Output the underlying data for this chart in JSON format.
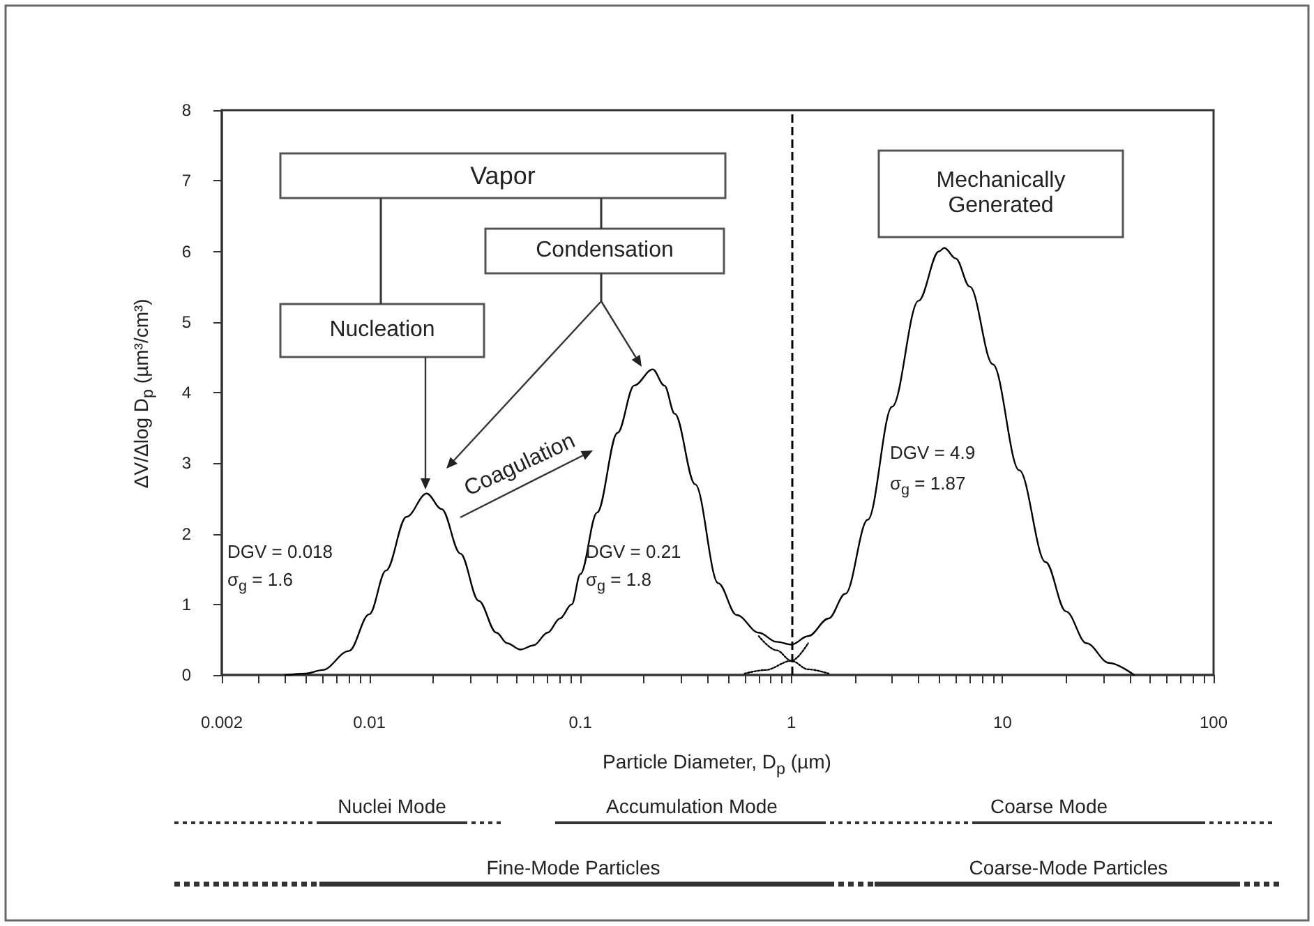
{
  "chart_data": {
    "type": "line",
    "xlabel": "Particle Diameter, D$_{p}$ (µm)",
    "ylabel": "ΔV/Δlog D$_{p}$ (µm³/cm³)",
    "annotations": [
      "Vapor",
      "Condensation",
      "Nucleation",
      "Mechanically Generated",
      "Coagulation",
      "DGV = 0.018",
      "σ$_{g}$ = 1.6",
      "DGV = 0.21",
      "σ$_{g}$ = 1.8",
      "DGV = 4.9",
      "σ$_{g}$ = 1.87",
      "Nuclei Mode",
      "Accumulation Mode",
      "Coarse Mode",
      "Fine-Mode Particles",
      "Coarse-Mode Particles"
    ],
    "series": [
      {
        "color": "#000000",
        "line_style": "solid",
        "x": [
          0.004,
          0.005,
          0.006,
          0.008,
          0.01,
          0.012,
          0.015,
          0.0187,
          0.022,
          0.027,
          0.033,
          0.04,
          0.045,
          0.052,
          0.06,
          0.07,
          0.08,
          0.091,
          0.1,
          0.12,
          0.15,
          0.18,
          0.22,
          0.25,
          0.28,
          0.35,
          0.45,
          0.55,
          0.7,
          0.85,
          1,
          1.2,
          1.5,
          1.8,
          2.3,
          3,
          4,
          5,
          5.3,
          6,
          7,
          9,
          12,
          16,
          20,
          25,
          32,
          42
        ],
        "values": [
          0,
          0.02,
          0.07,
          0.34,
          0.86,
          1.48,
          2.24,
          2.57,
          2.35,
          1.72,
          1.05,
          0.6,
          0.45,
          0.36,
          0.42,
          0.6,
          0.8,
          1,
          1.43,
          2.3,
          3.43,
          4.1,
          4.33,
          4.1,
          3.7,
          2.7,
          1.3,
          0.85,
          0.6,
          0.47,
          0.43,
          0.55,
          0.8,
          1.15,
          2.2,
          3.8,
          5.3,
          6,
          6.05,
          5.9,
          5.5,
          4.4,
          2.9,
          1.6,
          0.9,
          0.45,
          0.17,
          0
        ]
      },
      {
        "color": "#000000",
        "line_style": "dotted",
        "x": [
          0.7,
          0.85,
          1,
          1.2,
          1.5
        ],
        "values": [
          0.55,
          0.35,
          0.2,
          0.08,
          0.02
        ]
      },
      {
        "color": "#000000",
        "line_style": "dotted",
        "x": [
          0.6,
          0.75,
          1,
          1.2
        ],
        "values": [
          0.02,
          0.07,
          0.2,
          0.45
        ]
      }
    ],
    "xlim": [
      0.002,
      100
    ],
    "xticks": [
      0.002,
      {
        "value": 0.003,
        "label": null
      },
      {
        "value": 0.004,
        "label": null
      },
      {
        "value": 0.005,
        "label": null
      },
      {
        "value": 0.006,
        "label": null
      },
      {
        "value": 0.007,
        "label": null
      },
      {
        "value": 0.008,
        "label": null
      },
      {
        "value": 0.009,
        "label": null
      },
      0.01,
      {
        "value": 0.02,
        "label": null
      },
      {
        "value": 0.03,
        "label": null
      },
      {
        "value": 0.04,
        "label": null
      },
      {
        "value": 0.05,
        "label": null
      },
      {
        "value": 0.06,
        "label": null
      },
      {
        "value": 0.07,
        "label": null
      },
      {
        "value": 0.08,
        "label": null
      },
      {
        "value": 0.09,
        "label": null
      },
      0.1,
      {
        "value": 0.2,
        "label": null
      },
      {
        "value": 0.3,
        "label": null
      },
      {
        "value": 0.4,
        "label": null
      },
      {
        "value": 0.5,
        "label": null
      },
      {
        "value": 0.6,
        "label": null
      },
      {
        "value": 0.7,
        "label": null
      },
      {
        "value": 0.8,
        "label": null
      },
      {
        "value": 0.9,
        "label": null
      },
      1,
      {
        "value": 2,
        "label": null
      },
      {
        "value": 3,
        "label": null
      },
      {
        "value": 4,
        "label": null
      },
      {
        "value": 5,
        "label": null
      },
      {
        "value": 6,
        "label": null
      },
      {
        "value": 7,
        "label": null
      },
      {
        "value": 8,
        "label": null
      },
      {
        "value": 9,
        "label": null
      },
      10,
      {
        "value": 20,
        "label": null
      },
      {
        "value": 30,
        "label": null
      },
      {
        "value": 40,
        "label": null
      },
      {
        "value": 50,
        "label": null
      },
      {
        "value": 60,
        "label": null
      },
      {
        "value": 70,
        "label": null
      },
      {
        "value": 80,
        "label": null
      },
      {
        "value": 90,
        "label": null
      },
      100
    ],
    "ylim": [
      0,
      8
    ],
    "yticks": [
      0,
      1,
      2,
      3,
      4,
      5,
      6,
      7,
      8
    ],
    "log": "x",
    "grid": false,
    "marker": "none",
    "ref_lines": [
      {
        "axis": "x",
        "value": 1,
        "line_style": "dashed",
        "color": "#000000"
      }
    ]
  }
}
